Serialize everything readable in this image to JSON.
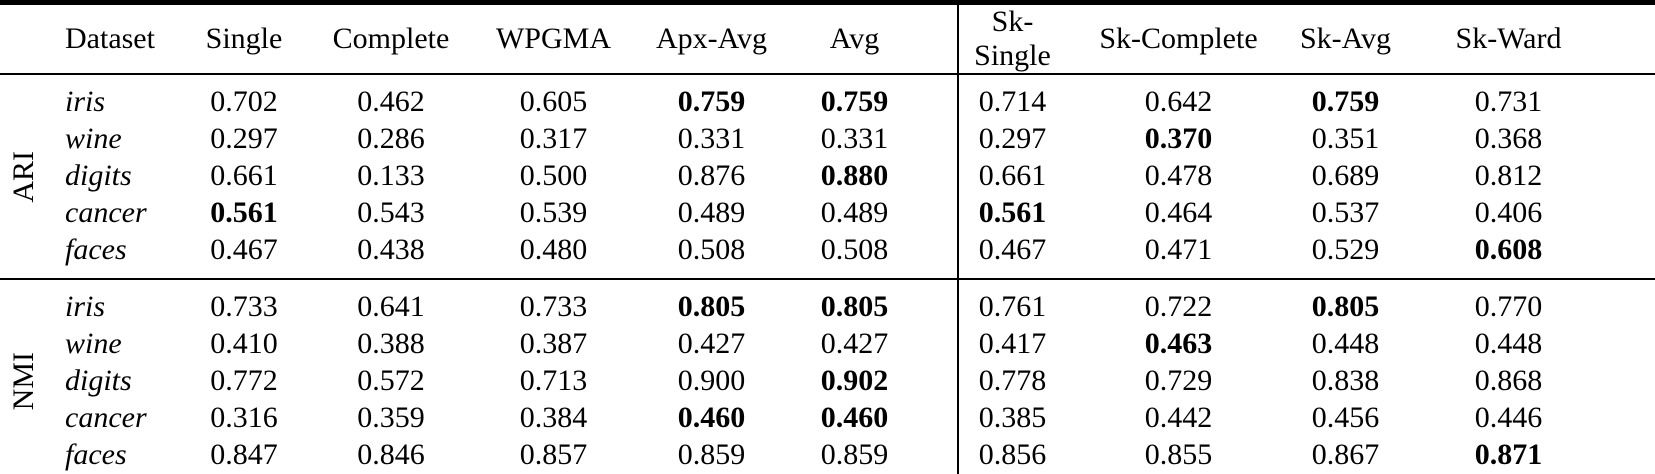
{
  "page": {
    "background_color": "#ffffff",
    "text_color": "#000000",
    "rule_color": "#000000"
  },
  "table": {
    "columns": [
      "Dataset",
      "Single",
      "Complete",
      "WPGMA",
      "Apx-Avg",
      "Avg",
      "Sk-Single",
      "Sk-Complete",
      "Sk-Avg",
      "Sk-Ward"
    ],
    "divider_after_column": "Avg",
    "groups": [
      {
        "label": "ARI",
        "rows": [
          {
            "dataset": "iris",
            "values": [
              "0.702",
              "0.462",
              "0.605",
              "0.759",
              "0.759",
              "0.714",
              "0.642",
              "0.759",
              "0.731"
            ],
            "bold": [
              3,
              4,
              7
            ]
          },
          {
            "dataset": "wine",
            "values": [
              "0.297",
              "0.286",
              "0.317",
              "0.331",
              "0.331",
              "0.297",
              "0.370",
              "0.351",
              "0.368"
            ],
            "bold": [
              6
            ]
          },
          {
            "dataset": "digits",
            "values": [
              "0.661",
              "0.133",
              "0.500",
              "0.876",
              "0.880",
              "0.661",
              "0.478",
              "0.689",
              "0.812"
            ],
            "bold": [
              4
            ]
          },
          {
            "dataset": "cancer",
            "values": [
              "0.561",
              "0.543",
              "0.539",
              "0.489",
              "0.489",
              "0.561",
              "0.464",
              "0.537",
              "0.406"
            ],
            "bold": [
              0,
              5
            ]
          },
          {
            "dataset": "faces",
            "values": [
              "0.467",
              "0.438",
              "0.480",
              "0.508",
              "0.508",
              "0.467",
              "0.471",
              "0.529",
              "0.608"
            ],
            "bold": [
              8
            ]
          }
        ]
      },
      {
        "label": "NMI",
        "rows": [
          {
            "dataset": "iris",
            "values": [
              "0.733",
              "0.641",
              "0.733",
              "0.805",
              "0.805",
              "0.761",
              "0.722",
              "0.805",
              "0.770"
            ],
            "bold": [
              3,
              4,
              7
            ]
          },
          {
            "dataset": "wine",
            "values": [
              "0.410",
              "0.388",
              "0.387",
              "0.427",
              "0.427",
              "0.417",
              "0.463",
              "0.448",
              "0.448"
            ],
            "bold": [
              6
            ]
          },
          {
            "dataset": "digits",
            "values": [
              "0.772",
              "0.572",
              "0.713",
              "0.900",
              "0.902",
              "0.778",
              "0.729",
              "0.838",
              "0.868"
            ],
            "bold": [
              4
            ]
          },
          {
            "dataset": "cancer",
            "values": [
              "0.316",
              "0.359",
              "0.384",
              "0.460",
              "0.460",
              "0.385",
              "0.442",
              "0.456",
              "0.446"
            ],
            "bold": [
              3,
              4
            ]
          },
          {
            "dataset": "faces",
            "values": [
              "0.847",
              "0.846",
              "0.857",
              "0.859",
              "0.859",
              "0.856",
              "0.855",
              "0.867",
              "0.871"
            ],
            "bold": [
              8
            ]
          }
        ]
      }
    ]
  }
}
